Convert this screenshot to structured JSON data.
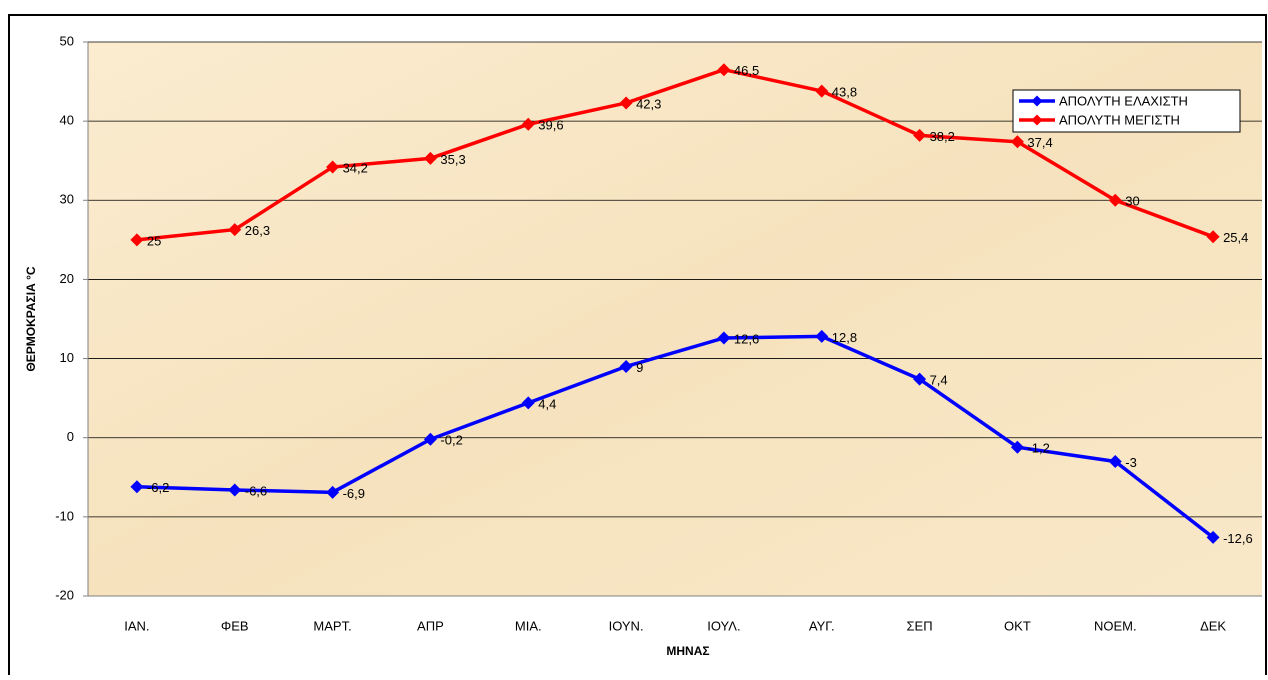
{
  "chart_data": {
    "type": "line",
    "x_label": "ΜΗΝΑΣ",
    "y_label": "ΘΕΡΜΟΚΡΑΣΙΑ °C",
    "categories": [
      "ΙΑΝ.",
      "ΦΕΒ",
      "ΜΑΡΤ.",
      "ΑΠΡ",
      "ΜΙΑ.",
      "ΙΟΥΝ.",
      "ΙΟΥΛ.",
      "ΑΥΓ.",
      "ΣΕΠ",
      "ΟΚΤ",
      "ΝΟΕΜ.",
      "ΔΕΚ"
    ],
    "series": [
      {
        "name": "ΑΠΟΛΥΤΗ ΕΛΑΧΙΣΤΗ",
        "color": "#0000ff",
        "values": [
          -6.2,
          -6.6,
          -6.9,
          -0.2,
          4.4,
          9,
          12.6,
          12.8,
          7.4,
          -1.2,
          -3,
          -12.6
        ],
        "value_labels": [
          "-6,2",
          "-6,6",
          "-6,9",
          "-0,2",
          "4,4",
          "9",
          "12,6",
          "12,8",
          "7,4",
          "-1,2",
          "-3",
          "-12,6"
        ]
      },
      {
        "name": "ΑΠΟΛΥΤΗ ΜΕΓΙΣΤΗ",
        "color": "#ff0000",
        "values": [
          25,
          26.3,
          34.2,
          35.3,
          39.6,
          42.3,
          46.5,
          43.8,
          38.2,
          37.4,
          30,
          25.4
        ],
        "value_labels": [
          "25",
          "26,3",
          "34,2",
          "35,3",
          "39,6",
          "42,3",
          "46,5",
          "43,8",
          "38,2",
          "37,4",
          "30",
          "25,4"
        ]
      }
    ],
    "ylim": [
      -20,
      50
    ],
    "yticks": [
      -20,
      -10,
      0,
      10,
      20,
      30,
      40,
      50
    ],
    "grid": true,
    "legend": "upper right"
  }
}
